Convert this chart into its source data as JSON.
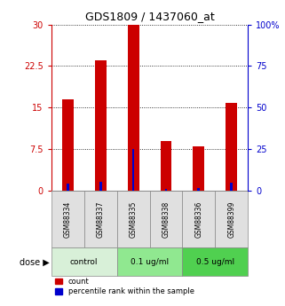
{
  "title": "GDS1809 / 1437060_at",
  "samples": [
    "GSM88334",
    "GSM88337",
    "GSM88335",
    "GSM88338",
    "GSM88336",
    "GSM88399"
  ],
  "red_values": [
    16.5,
    23.5,
    30.0,
    9.0,
    8.0,
    15.8
  ],
  "blue_values": [
    4.5,
    5.5,
    25.0,
    1.0,
    1.5,
    5.0
  ],
  "groups": [
    {
      "label": "control",
      "indices": [
        0,
        1
      ],
      "color": "#d8f0d8"
    },
    {
      "label": "0.1 ug/ml",
      "indices": [
        2,
        3
      ],
      "color": "#90e890"
    },
    {
      "label": "0.5 ug/ml",
      "indices": [
        4,
        5
      ],
      "color": "#50d050"
    }
  ],
  "ylim_left": [
    0,
    30
  ],
  "ylim_right": [
    0,
    100
  ],
  "yticks_left": [
    0,
    7.5,
    15,
    22.5,
    30
  ],
  "ytick_labels_left": [
    "0",
    "7.5",
    "15",
    "22.5",
    "30"
  ],
  "yticks_right": [
    0,
    25,
    50,
    75,
    100
  ],
  "ytick_labels_right": [
    "0",
    "25",
    "50",
    "75",
    "100%"
  ],
  "bar_width": 0.35,
  "red_color": "#cc0000",
  "blue_color": "#0000cc",
  "bg_color": "#ffffff",
  "plot_bg": "#ffffff",
  "grid_color": "#000000",
  "dose_label": "dose",
  "legend_count": "count",
  "legend_percentile": "percentile rank within the sample"
}
